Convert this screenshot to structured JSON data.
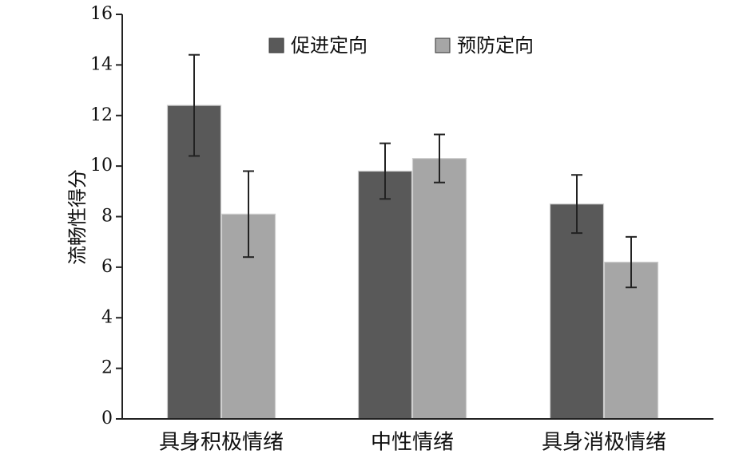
{
  "chart_data": {
    "type": "bar",
    "title": "",
    "xlabel": "",
    "ylabel": "流畅性得分",
    "ylim": [
      0,
      16
    ],
    "yticks": [
      0,
      2,
      4,
      6,
      8,
      10,
      12,
      14,
      16
    ],
    "categories": [
      "具身积极情绪",
      "中性情绪",
      "具身消极情绪"
    ],
    "series": [
      {
        "name": "促进定向",
        "color": "#595959",
        "values": [
          12.4,
          9.8,
          8.5
        ],
        "error": [
          2.0,
          1.1,
          1.15
        ]
      },
      {
        "name": "预防定向",
        "color": "#a6a6a6",
        "values": [
          8.1,
          10.3,
          6.2
        ],
        "error": [
          1.7,
          0.95,
          1.0
        ]
      }
    ],
    "legend_position": "top-center",
    "grid": false
  }
}
